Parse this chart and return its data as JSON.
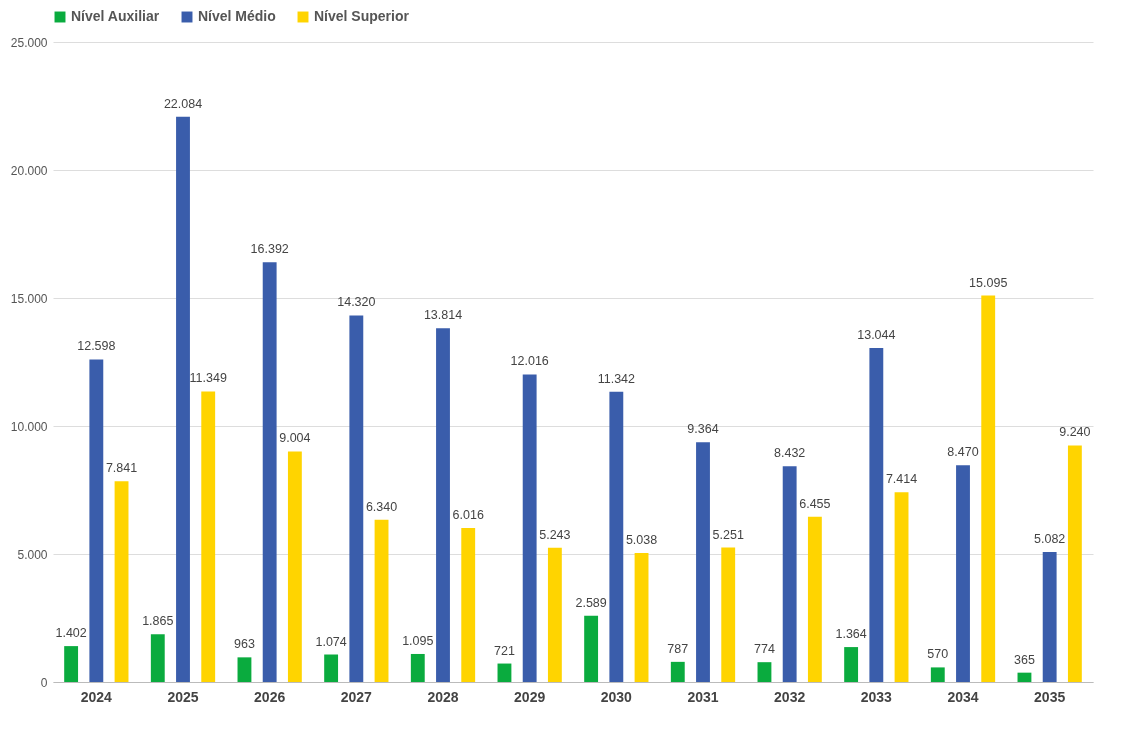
{
  "chart_data": {
    "type": "bar",
    "categories": [
      "2024",
      "2025",
      "2026",
      "2027",
      "2028",
      "2029",
      "2030",
      "2031",
      "2032",
      "2033",
      "2034",
      "2035"
    ],
    "series": [
      {
        "name": "Nível Auxiliar",
        "color": "#0aab3e",
        "values": [
          1402,
          1865,
          963,
          1074,
          1095,
          721,
          2589,
          787,
          774,
          1364,
          570,
          365
        ],
        "value_labels": [
          "1.402",
          "1.865",
          "963",
          "1.074",
          "1.095",
          "721",
          "2.589",
          "787",
          "774",
          "1.364",
          "570",
          "365"
        ]
      },
      {
        "name": "Nível Médio",
        "color": "#3a5dab",
        "values": [
          12598,
          22084,
          16392,
          14320,
          13814,
          12016,
          11342,
          9364,
          8432,
          13044,
          8470,
          5082
        ],
        "value_labels": [
          "12.598",
          "22.084",
          "16.392",
          "14.320",
          "13.814",
          "12.016",
          "11.342",
          "9.364",
          "8.432",
          "13.044",
          "8.470",
          "5.082"
        ]
      },
      {
        "name": "Nível Superior",
        "color": "#ffd400",
        "values": [
          7841,
          11349,
          9004,
          6340,
          6016,
          5243,
          5038,
          5251,
          6455,
          7414,
          15095,
          9240
        ],
        "value_labels": [
          "7.841",
          "11.349",
          "9.004",
          "6.340",
          "6.016",
          "5.243",
          "5.038",
          "5.251",
          "6.455",
          "7.414",
          "15.095",
          "9.240"
        ]
      }
    ],
    "ylim": [
      0,
      25000
    ],
    "yticks": [
      {
        "value": 0,
        "label": "0"
      },
      {
        "value": 5000,
        "label": "5.000"
      },
      {
        "value": 10000,
        "label": "10.000"
      },
      {
        "value": 15000,
        "label": "15.000"
      },
      {
        "value": 20000,
        "label": "20.000"
      },
      {
        "value": 25000,
        "label": "25.000"
      }
    ],
    "grid": "y",
    "legend": "top"
  }
}
